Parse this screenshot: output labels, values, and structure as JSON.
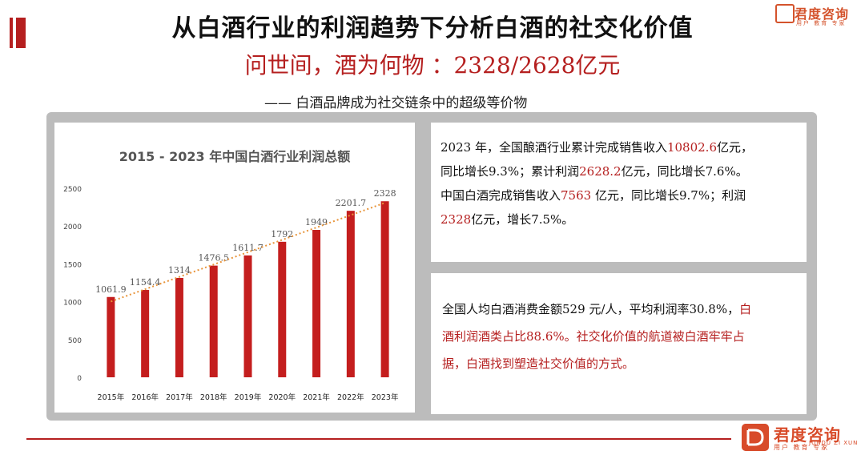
{
  "header": {
    "title": "从白酒行业的利润趋势下分析白酒的社交化价值",
    "subtitle": "问世间，酒为何物 ：2328/2628亿元",
    "tagline": "—— 白酒品牌成为社交链条中的超级等价物"
  },
  "brand": {
    "top_logo_text": "君度咨询",
    "top_logo_small": "用户 教育 专家",
    "bottom_logo_text": "君度咨询",
    "bottom_logo_en": "JUNDU ZI XUN",
    "bottom_logo_small": "用户 教育 专家"
  },
  "colors": {
    "accent_red": "#b51f1f",
    "bar_red": "#c41e1e",
    "trend_orange": "#e8943a",
    "panel_gray": "#bcbcbc"
  },
  "chart_data": {
    "type": "bar",
    "title": "2015 - 2023 年中国白酒行业利润总额",
    "categories": [
      "2015年",
      "2016年",
      "2017年",
      "2018年",
      "2019年",
      "2020年",
      "2021年",
      "2022年",
      "2023年"
    ],
    "values": [
      1061.9,
      1154.4,
      1314,
      1476.5,
      1611.7,
      1792,
      1949,
      2201.7,
      2328
    ],
    "value_labels": [
      "1061.9",
      "1154.4",
      "1314",
      "1476.5",
      "1611.7",
      "1792",
      "1949",
      "2201.7",
      "2328"
    ],
    "yticks": [
      "0",
      "500",
      "1000",
      "1500",
      "2000",
      "2500"
    ],
    "ylim": [
      0,
      2500
    ],
    "grid": false,
    "trendline": "linear",
    "xlabel": "",
    "ylabel": ""
  },
  "text_card_1": {
    "p1_a": "2023 年，全国酿酒行业累计完成销售收入",
    "p1_b": "10802.6",
    "p1_c": "亿元，",
    "p2_a": "同比增长9.3%；累计利润",
    "p2_b": "2628.2",
    "p2_c": "亿元，同比增长7.6%。",
    "p3_a": "中国白酒完成销售收入",
    "p3_b": "7563",
    "p3_c": " 亿元，同比增长9.7%；利润",
    "p4_a": "2328",
    "p4_b": "亿元，增长7.5%。"
  },
  "text_card_2": {
    "l1_a": "全国人均白酒消费金额529 元/人，平均利润率30.8%，",
    "l1_b": "白",
    "l2": "酒利润酒类占比88.6%。社交化价值的航道被白酒牢牢占",
    "l3": "据，白酒找到塑造社交价值的方式。"
  }
}
